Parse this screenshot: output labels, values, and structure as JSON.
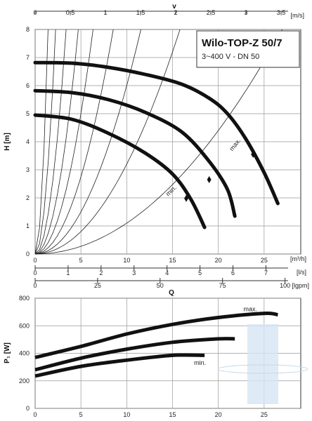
{
  "chart_data": [
    {
      "type": "line",
      "title": "Wilo-TOP-Z 50/7",
      "subtitle": "3~400 V - DN 50",
      "ylabel": "H [m]",
      "xlabel_top": "v",
      "unit_top": "[m/s]",
      "unit_q_m3h": "[m³/h]",
      "unit_q_ls": "[l/s]",
      "unit_q_lgpm": "[lgpm]",
      "xlabel_bottom": "Q",
      "xlim": [
        0,
        29
      ],
      "ylim": [
        0,
        8
      ],
      "grid": true,
      "x_ticks": [
        "0",
        "5",
        "10",
        "15",
        "20",
        "25"
      ],
      "y_ticks": [
        "0",
        "1",
        "2",
        "3",
        "4",
        "5",
        "6",
        "7",
        "8"
      ],
      "v_ticks": [
        "0",
        "0,5",
        "1",
        "1,5",
        "2",
        "2,5",
        "3",
        "3,5"
      ],
      "ls_ticks": [
        "0",
        "1",
        "2",
        "3",
        "4",
        "5",
        "6",
        "7"
      ],
      "lgpm_ticks": [
        "0",
        "25",
        "50",
        "75",
        "100"
      ],
      "series": [
        {
          "name": "max.",
          "x": [
            0,
            4,
            8,
            12,
            16,
            19,
            21,
            23,
            25,
            26.5
          ],
          "y": [
            6.82,
            6.8,
            6.65,
            6.4,
            6.05,
            5.55,
            5.0,
            4.1,
            2.9,
            1.8
          ]
        },
        {
          "name": "",
          "x": [
            0,
            4,
            8,
            12,
            16,
            19,
            21,
            21.8
          ],
          "y": [
            5.82,
            5.75,
            5.5,
            5.05,
            4.35,
            3.3,
            2.3,
            1.35
          ]
        },
        {
          "name": "min.",
          "x": [
            0,
            4,
            8,
            12,
            15,
            17,
            18.5
          ],
          "y": [
            4.95,
            4.8,
            4.3,
            3.6,
            2.85,
            1.95,
            0.95
          ]
        }
      ],
      "markers": [
        {
          "x": 23.8,
          "y": 3.55
        },
        {
          "x": 19.0,
          "y": 2.65
        },
        {
          "x": 16.5,
          "y": 1.98
        }
      ]
    },
    {
      "type": "line",
      "ylabel": "P₁ [W]",
      "xlim": [
        0,
        29
      ],
      "ylim": [
        0,
        800
      ],
      "grid": true,
      "x_ticks": [
        "0",
        "5",
        "10",
        "15",
        "20",
        "25"
      ],
      "y_ticks": [
        "0",
        "200",
        "400",
        "600",
        "800"
      ],
      "series": [
        {
          "name": "max.",
          "x": [
            0,
            5,
            10,
            15,
            20,
            25,
            26.5
          ],
          "y": [
            370,
            450,
            540,
            610,
            660,
            690,
            680
          ]
        },
        {
          "name": "",
          "x": [
            0,
            5,
            10,
            15,
            20,
            21.8
          ],
          "y": [
            280,
            365,
            430,
            480,
            505,
            505
          ]
        },
        {
          "name": "min.",
          "x": [
            0,
            5,
            10,
            15,
            18.5
          ],
          "y": [
            235,
            305,
            350,
            385,
            385
          ]
        }
      ]
    }
  ]
}
